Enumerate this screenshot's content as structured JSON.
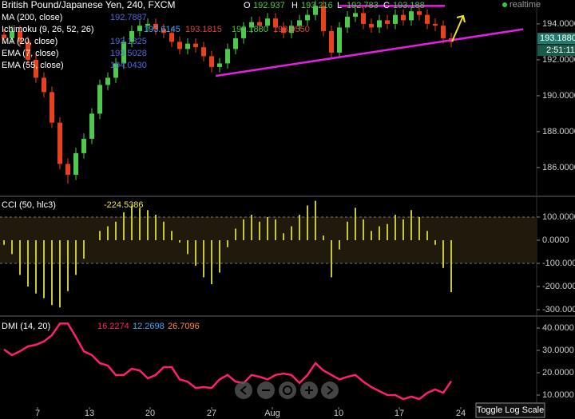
{
  "chart_data": [
    {
      "type": "candlestick",
      "title": "British Pound/Japanese Yen, 240, FXCM",
      "quote": [
        {
          "label": "O",
          "value": "192.937"
        },
        {
          "label": "H",
          "value": "193.216"
        },
        {
          "label": "L",
          "value": "192.783"
        },
        {
          "label": "C",
          "value": "193.188"
        }
      ],
      "status": "realtime",
      "indicators": [
        {
          "name": "MA (200, close)",
          "values": [
            "192.7887"
          ],
          "colors": [
            "#5566dd"
          ]
        },
        {
          "name": "Ichimoku (9, 26, 52, 26)",
          "values": [
            "193.6145",
            "193.1815",
            "193.1880",
            "193.9550"
          ],
          "colors": [
            "#3fa9f5",
            "#e04040",
            "#44c044",
            "#e04040"
          ]
        },
        {
          "name": "MA (20, close)",
          "values": [
            "193.1325"
          ],
          "colors": [
            "#5566dd"
          ]
        },
        {
          "name": "EMA (7, close)",
          "values": [
            "193.5028"
          ],
          "colors": [
            "#5566dd"
          ]
        },
        {
          "name": "EMA (55, close)",
          "values": [
            "194.0430"
          ],
          "colors": [
            "#5566dd"
          ]
        }
      ],
      "open": [
        193.4,
        193.2,
        193.6,
        193.0,
        192.0,
        191.0,
        190.2,
        188.5,
        186.2,
        185.6,
        186.8,
        187.6,
        189.0,
        190.6,
        191.0,
        191.8,
        193.0,
        193.6,
        193.9,
        194.0,
        193.7,
        193.5,
        193.0,
        192.6,
        192.9,
        192.7,
        192.2,
        191.6,
        191.8,
        192.6,
        193.2,
        193.8,
        194.1,
        193.9,
        194.3,
        193.8,
        193.5,
        193.9,
        194.2,
        194.5,
        195.0,
        193.6,
        192.4,
        193.8,
        194.4,
        194.6,
        194.0,
        193.8,
        194.2,
        194.0,
        194.5,
        194.2,
        194.7,
        194.5,
        194.0,
        193.9,
        193.2
      ],
      "high": [
        193.7,
        193.9,
        193.9,
        193.3,
        192.3,
        191.3,
        190.5,
        188.8,
        186.5,
        187.1,
        187.9,
        189.3,
        190.9,
        191.3,
        192.1,
        193.3,
        193.9,
        194.2,
        194.3,
        194.3,
        194.0,
        193.8,
        193.3,
        193.2,
        193.2,
        193.0,
        192.5,
        192.1,
        192.9,
        193.5,
        194.1,
        194.4,
        194.4,
        194.6,
        194.6,
        194.1,
        194.2,
        194.5,
        194.8,
        195.3,
        195.3,
        193.9,
        194.1,
        194.7,
        194.9,
        194.9,
        194.3,
        194.5,
        194.5,
        194.8,
        194.8,
        195.0,
        195.0,
        194.8,
        194.3,
        194.2,
        193.5
      ],
      "low": [
        192.9,
        192.9,
        192.7,
        191.7,
        190.7,
        189.9,
        188.2,
        185.9,
        185.1,
        185.3,
        186.5,
        187.3,
        188.7,
        190.3,
        190.7,
        191.5,
        192.7,
        193.3,
        193.6,
        193.4,
        193.2,
        192.7,
        192.3,
        192.3,
        192.4,
        191.9,
        191.3,
        191.3,
        191.5,
        192.3,
        192.9,
        193.5,
        193.6,
        193.6,
        193.5,
        193.2,
        193.2,
        193.6,
        193.9,
        194.2,
        193.3,
        192.1,
        192.1,
        193.5,
        194.1,
        193.7,
        193.5,
        193.5,
        193.7,
        193.7,
        193.9,
        193.9,
        194.2,
        193.7,
        193.6,
        192.9,
        192.7
      ],
      "close": [
        193.2,
        193.6,
        193.0,
        192.0,
        191.0,
        190.2,
        188.5,
        186.2,
        185.6,
        186.8,
        187.6,
        189.0,
        190.6,
        191.0,
        191.8,
        193.0,
        193.6,
        193.9,
        194.0,
        193.7,
        193.5,
        193.0,
        192.6,
        192.9,
        192.7,
        192.2,
        191.6,
        191.8,
        192.6,
        193.2,
        193.8,
        194.1,
        193.9,
        194.3,
        193.8,
        193.5,
        193.9,
        194.2,
        194.5,
        195.0,
        193.6,
        192.4,
        193.8,
        194.4,
        194.6,
        194.0,
        193.8,
        194.2,
        194.0,
        194.5,
        194.2,
        194.7,
        194.5,
        194.0,
        193.9,
        193.2,
        193.0
      ],
      "up_color": "#4ec94e",
      "down_color": "#e8411e",
      "trendlines": [
        {
          "x": [
            26.5,
            65
          ],
          "y": [
            191.1,
            193.7
          ]
        },
        {
          "x": [
            42,
            55.2
          ],
          "y": [
            195.0,
            195.0
          ]
        }
      ],
      "trendline_color": "#e61fe6",
      "last_price": {
        "value": 193.188,
        "label": "193.1880"
      },
      "countdown": "2:51:11",
      "ylim": [
        184.44,
        195.33
      ],
      "yticks": [
        {
          "value": 186,
          "label": "186.0000"
        },
        {
          "value": 188,
          "label": "188.0000"
        },
        {
          "value": 190,
          "label": "190.0000"
        },
        {
          "value": 192,
          "label": "192.0000"
        },
        {
          "value": 194,
          "label": "194.0000"
        }
      ]
    },
    {
      "type": "bar",
      "title": "CCI (50, hlc3)",
      "readouts": [
        "-224.5386"
      ],
      "readout_colors": [
        "#e8e840"
      ],
      "values": [
        -20,
        -60,
        -150,
        -200,
        -230,
        -250,
        -280,
        -290,
        -220,
        -150,
        -80,
        0,
        40,
        60,
        80,
        120,
        150,
        140,
        130,
        110,
        80,
        40,
        -10,
        -60,
        -110,
        -160,
        -190,
        -140,
        -30,
        50,
        90,
        110,
        80,
        100,
        90,
        30,
        60,
        110,
        150,
        170,
        20,
        -160,
        -40,
        80,
        140,
        90,
        40,
        60,
        70,
        110,
        90,
        130,
        100,
        40,
        -20,
        -120,
        -224.5
      ],
      "color": "#c8c832",
      "band": [
        -100,
        100
      ],
      "ylim": [
        -324,
        186
      ],
      "yticks": [
        {
          "value": 100,
          "label": "100.0000"
        },
        {
          "value": 0,
          "label": "0.0000"
        },
        {
          "value": -100,
          "label": "-100.0000"
        },
        {
          "value": -200,
          "label": "-200.0000"
        },
        {
          "value": -300,
          "label": "-300.0000"
        }
      ]
    },
    {
      "type": "line",
      "title": "DMI (14, 20)",
      "readouts": [
        "16.2274",
        "12.2698",
        "26.7096"
      ],
      "readout_colors": [
        "#ff1f6e",
        "#3fa9f5",
        "#ff8c2a"
      ],
      "values": [
        30.4,
        27.9,
        29.6,
        31.8,
        32.5,
        34,
        36.8,
        42,
        42,
        36,
        29.6,
        27.9,
        24.3,
        23.2,
        19,
        19,
        21.8,
        21,
        17.5,
        19,
        22.5,
        22.5,
        17,
        16,
        13.2,
        13.6,
        13.2,
        17,
        19,
        16,
        15.4,
        19,
        18.2,
        17,
        19,
        19.6,
        19,
        15.4,
        19,
        24.3,
        21,
        19,
        17,
        18.2,
        19,
        16,
        13.6,
        11.8,
        10,
        10,
        8.2,
        9.3,
        8.2,
        11,
        12.5,
        11,
        16.2
      ],
      "color": "#ff1f6e",
      "ylim": [
        -0.7,
        45
      ],
      "yticks": [
        {
          "value": 10,
          "label": "10.0000"
        },
        {
          "value": 20,
          "label": "20.0000"
        },
        {
          "value": 30,
          "label": "30.0000"
        },
        {
          "value": 40,
          "label": "40.0000"
        }
      ],
      "xticks": [
        {
          "value": 4.2,
          "label": "7"
        },
        {
          "value": 10.7,
          "label": "13"
        },
        {
          "value": 18.3,
          "label": "20"
        },
        {
          "value": 26,
          "label": "27"
        },
        {
          "value": 33.6,
          "label": "Aug"
        },
        {
          "value": 41.9,
          "label": "10"
        },
        {
          "value": 49.5,
          "label": "17"
        },
        {
          "value": 57.2,
          "label": "24"
        }
      ]
    }
  ],
  "controls": {
    "log_scale": "Toggle Log Scale"
  }
}
